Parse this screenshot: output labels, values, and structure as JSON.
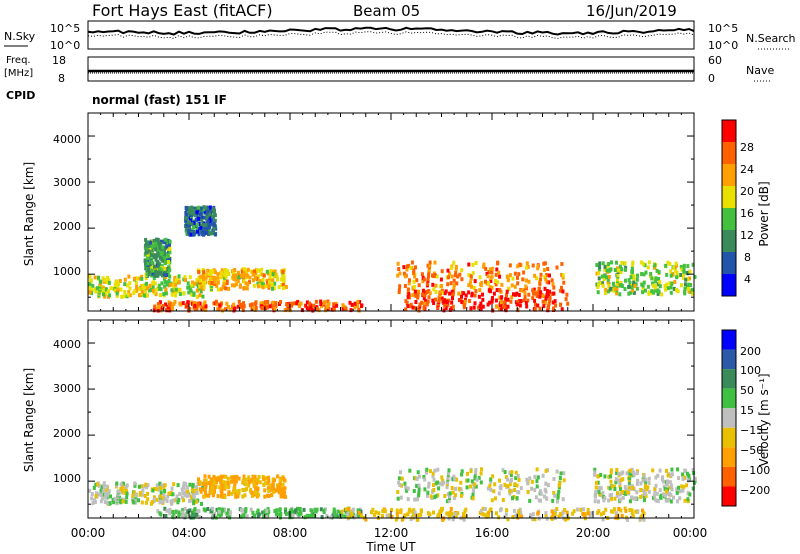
{
  "header": {
    "title": "Fort Hays East (fitACF)",
    "beam": "Beam 05",
    "date": "16/Jun/2019"
  },
  "noise_panel": {
    "left_label": "N.Sky",
    "right_label": "N.Search",
    "left_ticks": [
      "10^5",
      "10^0"
    ],
    "right_ticks": [
      "10^5",
      "10^0"
    ]
  },
  "freq_panel": {
    "left_label_top": "Freq.",
    "left_label_unit": "[MHz]",
    "left_ticks": [
      "18",
      "8"
    ],
    "right_label": "Nave",
    "right_ticks": [
      "60",
      "0"
    ]
  },
  "cpid": {
    "label": "CPID",
    "mode": "normal (fast) 151 IF"
  },
  "power_panel": {
    "ylabel": "Slant Range [km]",
    "yticks": [
      "1000",
      "2000",
      "3000",
      "4000"
    ],
    "colorbar_label": "Power [dB]",
    "colorbar_ticks": [
      "28",
      "24",
      "20",
      "16",
      "12",
      "8",
      "4"
    ],
    "colors": [
      "#0000ff",
      "#2255aa",
      "#3a8a5a",
      "#44c040",
      "#e8e000",
      "#ffa000",
      "#ff6000",
      "#ff0000"
    ]
  },
  "velocity_panel": {
    "ylabel": "Slant Range [km]",
    "yticks": [
      "1000",
      "2000",
      "3000",
      "4000"
    ],
    "colorbar_label": "Velocity [m s⁻¹]",
    "colorbar_ticks": [
      "200",
      "100",
      "50",
      "15",
      "−15",
      "−50",
      "−100",
      "−200"
    ],
    "colors": [
      "#0000ff",
      "#2a5aa8",
      "#3a8a5a",
      "#40c040",
      "#bfbfbf",
      "#e8c000",
      "#ffa000",
      "#ff6000",
      "#ff0000"
    ]
  },
  "xaxis": {
    "label": "Time UT",
    "ticks": [
      "00:00",
      "04:00",
      "08:00",
      "12:00",
      "16:00",
      "20:00",
      "00:00"
    ]
  },
  "chart_data": {
    "type": "heatmap",
    "title": "Fort Hays East (fitACF)",
    "xlabel": "Time UT",
    "ylabel": "Slant Range [km]",
    "xlim_hours": [
      0,
      24
    ],
    "ylim_km": [
      200,
      4500
    ],
    "power_colorbar_db": [
      4,
      8,
      12,
      16,
      20,
      24,
      28
    ],
    "velocity_colorbar_ms": [
      -200,
      -100,
      -50,
      -15,
      15,
      50,
      100,
      200
    ],
    "echo_regions": [
      {
        "panel": "power",
        "t": [
          0,
          4.5
        ],
        "range_km": [
          550,
          1000
        ],
        "level_db": 18
      },
      {
        "panel": "power",
        "t": [
          2.2,
          3.2
        ],
        "range_km": [
          1000,
          1800
        ],
        "level_db": 12
      },
      {
        "panel": "power",
        "t": [
          3.8,
          5
        ],
        "range_km": [
          1900,
          2500
        ],
        "level_db": 8
      },
      {
        "panel": "power",
        "t": [
          4.3,
          7.8
        ],
        "range_km": [
          700,
          1150
        ],
        "level_db": 20
      },
      {
        "panel": "power",
        "t": [
          2.5,
          10.8
        ],
        "range_km": [
          250,
          450
        ],
        "level_db": 26
      },
      {
        "panel": "power",
        "t": [
          12.2,
          18.8
        ],
        "range_km": [
          600,
          1300
        ],
        "level_db": 24
      },
      {
        "panel": "power",
        "t": [
          12.5,
          19
        ],
        "range_km": [
          250,
          700
        ],
        "level_db": 28
      },
      {
        "panel": "power",
        "t": [
          20,
          24
        ],
        "range_km": [
          600,
          1300
        ],
        "level_db": 16
      },
      {
        "panel": "velocity",
        "t": [
          0,
          4.5
        ],
        "range_km": [
          550,
          1000
        ],
        "level_ms": 0
      },
      {
        "panel": "velocity",
        "t": [
          4.3,
          7.8
        ],
        "range_km": [
          700,
          1150
        ],
        "level_ms": -60
      },
      {
        "panel": "velocity",
        "t": [
          2.5,
          10.8
        ],
        "range_km": [
          250,
          450
        ],
        "level_ms": 30
      },
      {
        "panel": "velocity",
        "t": [
          12.2,
          18.8
        ],
        "range_km": [
          600,
          1300
        ],
        "level_ms": 0
      },
      {
        "panel": "velocity",
        "t": [
          10,
          22
        ],
        "range_km": [
          200,
          450
        ],
        "level_ms": -30
      },
      {
        "panel": "velocity",
        "t": [
          20,
          24
        ],
        "range_km": [
          600,
          1300
        ],
        "level_ms": 0
      }
    ]
  }
}
